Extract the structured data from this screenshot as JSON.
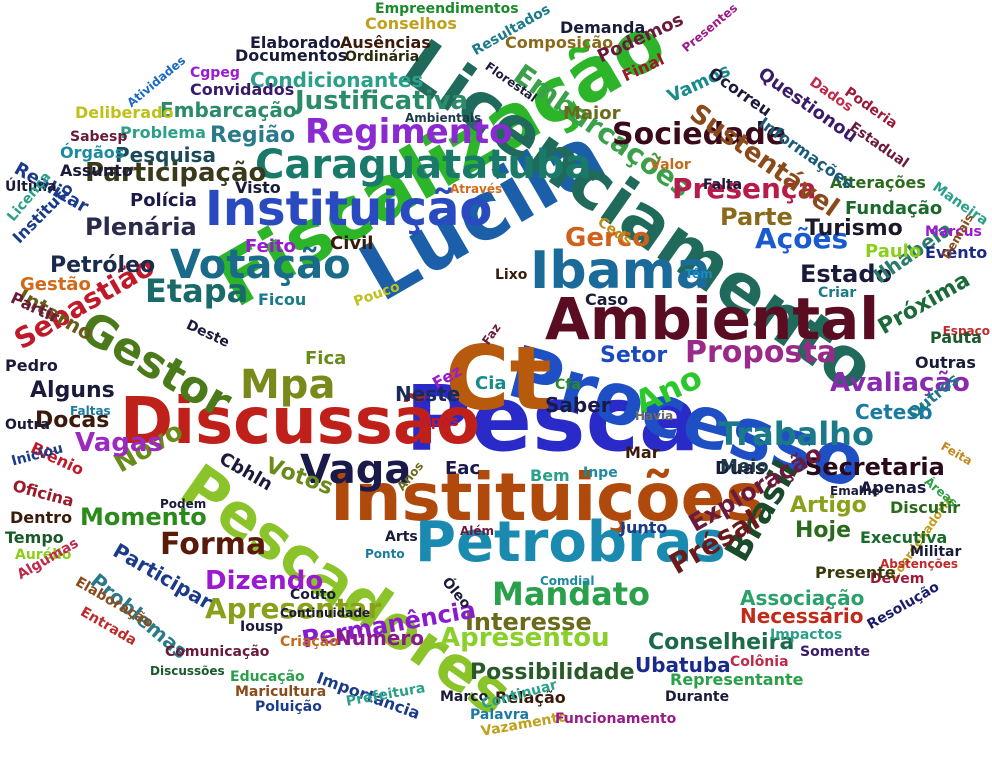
{
  "words": [
    {
      "text": "Pesca",
      "color": "#2a2ac8"
    },
    {
      "text": "Processo",
      "color": "#1f4fc4"
    },
    {
      "text": "Ct",
      "color": "#b85a0c"
    },
    {
      "text": "Lucila",
      "color": "#1a5fa8"
    },
    {
      "text": "Fiscalização",
      "color": "#2db52a"
    },
    {
      "text": "Licenciamento",
      "color": "#1f6a5a"
    },
    {
      "text": "Instituições",
      "color": "#b04a0c"
    },
    {
      "text": "Ambiental",
      "color": "#5a0d22"
    },
    {
      "text": "Pescadores",
      "color": "#8ac42a"
    },
    {
      "text": "Discussão",
      "color": "#c0201a"
    },
    {
      "text": "Petrobras",
      "color": "#1a8ab0"
    },
    {
      "text": "Instituição",
      "color": "#2a4ac0"
    },
    {
      "text": "Ibama",
      "color": "#1a6a9a"
    },
    {
      "text": "Vaga",
      "color": "#1a1a4a"
    },
    {
      "text": "Caraguatatuba",
      "color": "#1a7a6a"
    },
    {
      "text": "Gestor",
      "color": "#4a7a1a"
    },
    {
      "text": "Votação",
      "color": "#1a6a8a"
    },
    {
      "text": "Embarcações",
      "color": "#3aa04a"
    },
    {
      "text": "Regimento",
      "color": "#8a2ad0"
    },
    {
      "text": "Trabalho",
      "color": "#1a7a8a"
    },
    {
      "text": "Proposta",
      "color": "#9a2a8a"
    },
    {
      "text": "Mpa",
      "color": "#7a8a1a"
    },
    {
      "text": "Mandato",
      "color": "#2aa04a"
    },
    {
      "text": "Dizendo",
      "color": "#9a1ad0"
    },
    {
      "text": "Etapa",
      "color": "#1a6a6a"
    },
    {
      "text": "Forma",
      "color": "#5a1a0a"
    },
    {
      "text": "Ano",
      "color": "#2ac82a"
    },
    {
      "text": "Brasil",
      "color": "#1a4a2a"
    },
    {
      "text": "Sociedade",
      "color": "#3a0a1a"
    },
    {
      "text": "Presença",
      "color": "#b81a4a"
    },
    {
      "text": "Apresentar",
      "color": "#8aa01a"
    },
    {
      "text": "Apresentou",
      "color": "#8ad02a"
    },
    {
      "text": "Sustentável",
      "color": "#8a4a1a"
    },
    {
      "text": "Ações",
      "color": "#1a5ad0"
    },
    {
      "text": "Gerco",
      "color": "#d0601a"
    },
    {
      "text": "Justificativa",
      "color": "#2a8a6a"
    },
    {
      "text": "Sebastião",
      "color": "#c01a2a"
    },
    {
      "text": "Participação",
      "color": "#3a3a1a"
    },
    {
      "text": "Avaliação",
      "color": "#8a2ab0"
    },
    {
      "text": "Secretaria",
      "color": "#2a0a1a"
    },
    {
      "text": "Possibilidade",
      "color": "#2a5a2a"
    },
    {
      "text": "Interesse",
      "color": "#6a6a1a"
    },
    {
      "text": "Permanência",
      "color": "#8a1ad0"
    },
    {
      "text": "Momento",
      "color": "#2a8a1a"
    },
    {
      "text": "Novo",
      "color": "#6a8a1a"
    },
    {
      "text": "Vagas",
      "color": "#9a2ac0"
    },
    {
      "text": "Exploração",
      "color": "#6a1a3a"
    },
    {
      "text": "Présal",
      "color": "#6a1a1a"
    },
    {
      "text": "Plenária",
      "color": "#2a2a4a"
    },
    {
      "text": "Petróleo",
      "color": "#1a2a4a"
    },
    {
      "text": "Estado",
      "color": "#1a1a3a"
    },
    {
      "text": "Turismo",
      "color": "#1a1a2a"
    },
    {
      "text": "Parte",
      "color": "#8a6a1a"
    },
    {
      "text": "Setor",
      "color": "#1a4ac0"
    },
    {
      "text": "Região",
      "color": "#2a7a8a"
    },
    {
      "text": "Condicionantes",
      "color": "#2aa08a"
    },
    {
      "text": "Próxima",
      "color": "#1a6a3a"
    },
    {
      "text": "Ilhabela",
      "color": "#2a7a6a"
    },
    {
      "text": "Participar",
      "color": "#1a3a8a"
    },
    {
      "text": "Problemas",
      "color": "#2a7a8a"
    },
    {
      "text": "Número",
      "color": "#8a1a8a"
    },
    {
      "text": "Conselheira",
      "color": "#1a6a4a"
    },
    {
      "text": "Associação",
      "color": "#2aa06a"
    },
    {
      "text": "Necessário",
      "color": "#c02a1a"
    },
    {
      "text": "Ubatuba",
      "color": "#1a2a8a"
    },
    {
      "text": "Hoje",
      "color": "#2a6a1a"
    },
    {
      "text": "Artigo",
      "color": "#8aa01a"
    },
    {
      "text": "Cetesb",
      "color": "#1a7aa0"
    },
    {
      "text": "Saber",
      "color": "#1a1a4a"
    },
    {
      "text": "Neste",
      "color": "#1a2a5a"
    },
    {
      "text": "Votos",
      "color": "#6a8a1a"
    },
    {
      "text": "Cbhln",
      "color": "#1a1a3a"
    },
    {
      "text": "Docas",
      "color": "#3a1a0a"
    },
    {
      "text": "Alguns",
      "color": "#1a1a3a"
    },
    {
      "text": "Interno",
      "color": "#6a5a1a"
    },
    {
      "text": "Gestão",
      "color": "#d06a1a"
    },
    {
      "text": "Pesquisa",
      "color": "#1a4a5a"
    },
    {
      "text": "Embarcação",
      "color": "#2a8a6a"
    },
    {
      "text": "Polícia",
      "color": "#1a1a4a"
    },
    {
      "text": "Civil",
      "color": "#3a1a0a"
    },
    {
      "text": "Feito",
      "color": "#9a1ad0"
    },
    {
      "text": "Fica",
      "color": "#6a8a1a"
    },
    {
      "text": "Duas",
      "color": "#1a1a3a"
    },
    {
      "text": "Meio",
      "color": "#1a3a4a"
    },
    {
      "text": "Eac",
      "color": "#1a1a4a"
    },
    {
      "text": "Bem",
      "color": "#2aa08a"
    },
    {
      "text": "Inpe",
      "color": "#1a8aa0"
    },
    {
      "text": "Cia",
      "color": "#1a8a8a"
    },
    {
      "text": "Cfa",
      "color": "#2a8a2a"
    },
    {
      "text": "Havia",
      "color": "#6a6a6a"
    },
    {
      "text": "Mar",
      "color": "#3a1a0a"
    },
    {
      "text": "Caso",
      "color": "#1a1a3a"
    },
    {
      "text": "Lixo",
      "color": "#3a1a0a"
    },
    {
      "text": "Faz",
      "color": "#6a1a3a"
    },
    {
      "text": "Fez",
      "color": "#9a1ad0"
    },
    {
      "text": "Após",
      "color": "#c01a2a"
    },
    {
      "text": "Pouco",
      "color": "#c0c01a"
    },
    {
      "text": "Ficou",
      "color": "#1a7a8a"
    },
    {
      "text": "Criar",
      "color": "#1a7a8a"
    },
    {
      "text": "Têm",
      "color": "#1a8ac0"
    },
    {
      "text": "Paulo",
      "color": "#8ad01a"
    },
    {
      "text": "Evento",
      "color": "#1a2a8a"
    },
    {
      "text": "Marcus",
      "color": "#9a1ad0"
    },
    {
      "text": "Fundação",
      "color": "#1a6a2a"
    },
    {
      "text": "Alterações",
      "color": "#2a6a1a"
    },
    {
      "text": "Maneira",
      "color": "#2aa08a"
    },
    {
      "text": "Falta",
      "color": "#1a1a3a"
    },
    {
      "text": "Valor",
      "color": "#c06a1a"
    },
    {
      "text": "Ceds",
      "color": "#c08a1a"
    },
    {
      "text": "Através",
      "color": "#d06a1a"
    },
    {
      "text": "Visto",
      "color": "#1a1a3a"
    },
    {
      "text": "Assunto",
      "color": "#1a1a3a"
    },
    {
      "text": "Órgãos",
      "color": "#1a8aa0"
    },
    {
      "text": "Problema",
      "color": "#2aa08a"
    },
    {
      "text": "Sabesp",
      "color": "#6a1a3a"
    },
    {
      "text": "Deliberado",
      "color": "#c0c01a"
    },
    {
      "text": "Convidados",
      "color": "#3a1a6a"
    },
    {
      "text": "Cgpeg",
      "color": "#9a1ad0"
    },
    {
      "text": "Atividades",
      "color": "#1a6ac0"
    },
    {
      "text": "Documentos",
      "color": "#1a1a3a"
    },
    {
      "text": "Elaborado",
      "color": "#1a1a3a"
    },
    {
      "text": "Ausências",
      "color": "#3a1a0a"
    },
    {
      "text": "Ordinária",
      "color": "#2a2a0a"
    },
    {
      "text": "Empreendimentos",
      "color": "#1a8a2a"
    },
    {
      "text": "Conselhos",
      "color": "#c0a01a"
    },
    {
      "text": "Resultados",
      "color": "#1a7a8a"
    },
    {
      "text": "Demanda",
      "color": "#1a1a3a"
    },
    {
      "text": "Composição",
      "color": "#8a6a1a"
    },
    {
      "text": "Presentes",
      "color": "#9a1a8a"
    },
    {
      "text": "Podemos",
      "color": "#6a1a3a"
    },
    {
      "text": "Final",
      "color": "#9a1a2a"
    },
    {
      "text": "Vamos",
      "color": "#1a8a8a"
    },
    {
      "text": "Maior",
      "color": "#6a6a1a"
    },
    {
      "text": "Florestal",
      "color": "#1a1a3a"
    },
    {
      "text": "Ambientais",
      "color": "#1a3a4a"
    },
    {
      "text": "Ocorreu",
      "color": "#1a1a3a"
    },
    {
      "text": "Questionou",
      "color": "#3a1a6a"
    },
    {
      "text": "Informações",
      "color": "#1a5a7a"
    },
    {
      "text": "Dados",
      "color": "#c02a4a"
    },
    {
      "text": "Poderia",
      "color": "#9a1a3a"
    },
    {
      "text": "Estadual",
      "color": "#6a1a3a"
    },
    {
      "text": "Realizar",
      "color": "#1a3a8a"
    },
    {
      "text": "Última",
      "color": "#1a1a3a"
    },
    {
      "text": "Licença",
      "color": "#2aa08a"
    },
    {
      "text": "Instituto",
      "color": "#1a3a8a"
    },
    {
      "text": "Partir",
      "color": "#6a1a3a"
    },
    {
      "text": "Deste",
      "color": "#1a1a3a"
    },
    {
      "text": "Pedro",
      "color": "#1a1a3a"
    },
    {
      "text": "Faltas",
      "color": "#1a7aa0"
    },
    {
      "text": "Outra",
      "color": "#1a1a3a"
    },
    {
      "text": "Biênio",
      "color": "#c01a2a"
    },
    {
      "text": "Iniciou",
      "color": "#1a3a8a"
    },
    {
      "text": "Oficina",
      "color": "#9a1a2a"
    },
    {
      "text": "Dentro",
      "color": "#3a1a0a"
    },
    {
      "text": "Tempo",
      "color": "#1a5a2a"
    },
    {
      "text": "Aurélio",
      "color": "#8ad01a"
    },
    {
      "text": "Algumas",
      "color": "#c02a4a"
    },
    {
      "text": "Elaboração",
      "color": "#8a4a1a"
    },
    {
      "text": "Entrada",
      "color": "#c02a2a"
    },
    {
      "text": "Podem",
      "color": "#1a1a3a"
    },
    {
      "text": "Arts",
      "color": "#1a1a3a"
    },
    {
      "text": "Ponto",
      "color": "#1a7aa0"
    },
    {
      "text": "Além",
      "color": "#6a1a3a"
    },
    {
      "text": "Anos",
      "color": "#6a6a1a"
    },
    {
      "text": "Comdial",
      "color": "#1a8aa0"
    },
    {
      "text": "Óleo",
      "color": "#1a1a3a"
    },
    {
      "text": "Couto",
      "color": "#1a1a3a"
    },
    {
      "text": "Iousp",
      "color": "#1a1a3a"
    },
    {
      "text": "Continuidade",
      "color": "#1a1a3a"
    },
    {
      "text": "Criação",
      "color": "#c06a1a"
    },
    {
      "text": "Comunicação",
      "color": "#6a1a3a"
    },
    {
      "text": "Discussões",
      "color": "#1a5a2a"
    },
    {
      "text": "Educação",
      "color": "#2aa04a"
    },
    {
      "text": "Maricultura",
      "color": "#8a4a1a"
    },
    {
      "text": "Importância",
      "color": "#1a3a8a"
    },
    {
      "text": "Poluição",
      "color": "#1a3a8a"
    },
    {
      "text": "Prefeitura",
      "color": "#2aa08a"
    },
    {
      "text": "Marco",
      "color": "#1a1a3a"
    },
    {
      "text": "Relação",
      "color": "#3a1a0a"
    },
    {
      "text": "Continuar",
      "color": "#2aa08a"
    },
    {
      "text": "Palavra",
      "color": "#1a7aa0"
    },
    {
      "text": "Vazamento",
      "color": "#c0a01a"
    },
    {
      "text": "Funcionamento",
      "color": "#9a1a8a"
    },
    {
      "text": "Durante",
      "color": "#1a1a3a"
    },
    {
      "text": "Representante",
      "color": "#2aa04a"
    },
    {
      "text": "Colônia",
      "color": "#c02a4a"
    },
    {
      "text": "Somente",
      "color": "#3a1a6a"
    },
    {
      "text": "Impactos",
      "color": "#2aa08a"
    },
    {
      "text": "Resolução",
      "color": "#1a1a6a"
    },
    {
      "text": "Coordenadoria",
      "color": "#c0a01a"
    },
    {
      "text": "Devem",
      "color": "#9a1a3a"
    },
    {
      "text": "Abstenções",
      "color": "#c02a2a"
    },
    {
      "text": "Militar",
      "color": "#1a1a3a"
    },
    {
      "text": "Presente",
      "color": "#3a3a0a"
    },
    {
      "text": "Executiva",
      "color": "#1a6a2a"
    },
    {
      "text": "Discutir",
      "color": "#2a6a1a"
    },
    {
      "text": "Áreas",
      "color": "#2aa04a"
    },
    {
      "text": "Emalhe",
      "color": "#1a1a3a"
    },
    {
      "text": "Apenas",
      "color": "#1a1a3a"
    },
    {
      "text": "Feita",
      "color": "#c08a1a"
    },
    {
      "text": "Outros",
      "color": "#1a7a8a"
    },
    {
      "text": "Espaço",
      "color": "#c02a2a"
    },
    {
      "text": "Pauta",
      "color": "#1a5a2a"
    },
    {
      "text": "Outras",
      "color": "#1a1a3a"
    },
    {
      "text": "Demais",
      "color": "#8a4a1a"
    },
    {
      "text": "Junto",
      "color": "#1a3a8a"
    }
  ]
}
